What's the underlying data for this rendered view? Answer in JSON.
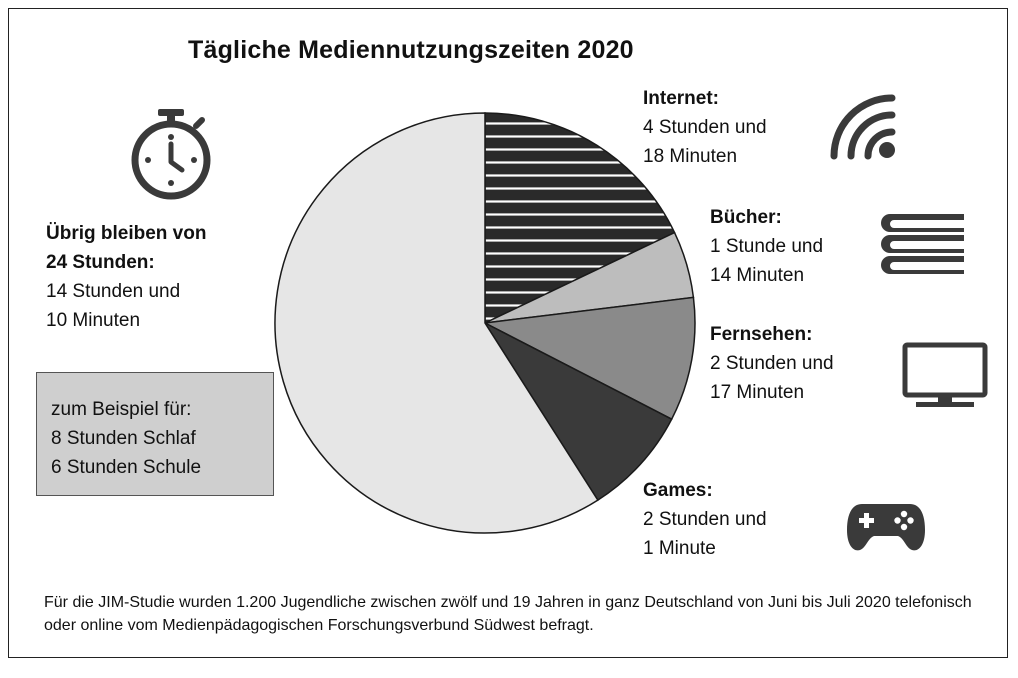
{
  "title": "Tägliche Mediennutzungszeiten 2020",
  "remaining": {
    "heading_line1": "Übrig bleiben von",
    "heading_line2": "24 Stunden:",
    "value_line1": "14 Stunden und",
    "value_line2": "10 Minuten"
  },
  "example_box": {
    "line1": "zum Beispiel für:",
    "line2": "8 Stunden Schlaf",
    "line3": "6 Stunden Schule"
  },
  "legend": {
    "internet": {
      "heading": "Internet:",
      "line1": "4 Stunden und",
      "line2": "18 Minuten",
      "icon": "wifi-icon"
    },
    "buecher": {
      "heading": "Bücher:",
      "line1": "1 Stunde und",
      "line2": "14 Minuten",
      "icon": "books-icon"
    },
    "fernsehen": {
      "heading": "Fernsehen:",
      "line1": "2 Stunden und",
      "line2": "17 Minuten",
      "icon": "tv-icon"
    },
    "games": {
      "heading": "Games:",
      "line1": "2 Stunden und",
      "line2": "1 Minute",
      "icon": "gamepad-icon"
    }
  },
  "footnote": "Für die JIM-Studie wurden 1.200 Jugendliche zwischen zwölf und 19 Jahren in ganz Deutschland von Juni bis Juli 2020 telefonisch oder online vom Medienpädagogischen Forschungsverbund Südwest befragt.",
  "chart_data": {
    "type": "pie",
    "title": "Tägliche Mediennutzungszeiten 2020",
    "unit": "minutes",
    "categories": [
      "Internet",
      "Bücher",
      "Fernsehen",
      "Games",
      "Übrig"
    ],
    "values": [
      258,
      74,
      137,
      121,
      850
    ],
    "colors": [
      "hatched",
      "#bdbdbd",
      "#8a8a8a",
      "#3a3a3a",
      "#e6e6e6"
    ],
    "start": "12 o'clock",
    "direction": "clockwise"
  }
}
